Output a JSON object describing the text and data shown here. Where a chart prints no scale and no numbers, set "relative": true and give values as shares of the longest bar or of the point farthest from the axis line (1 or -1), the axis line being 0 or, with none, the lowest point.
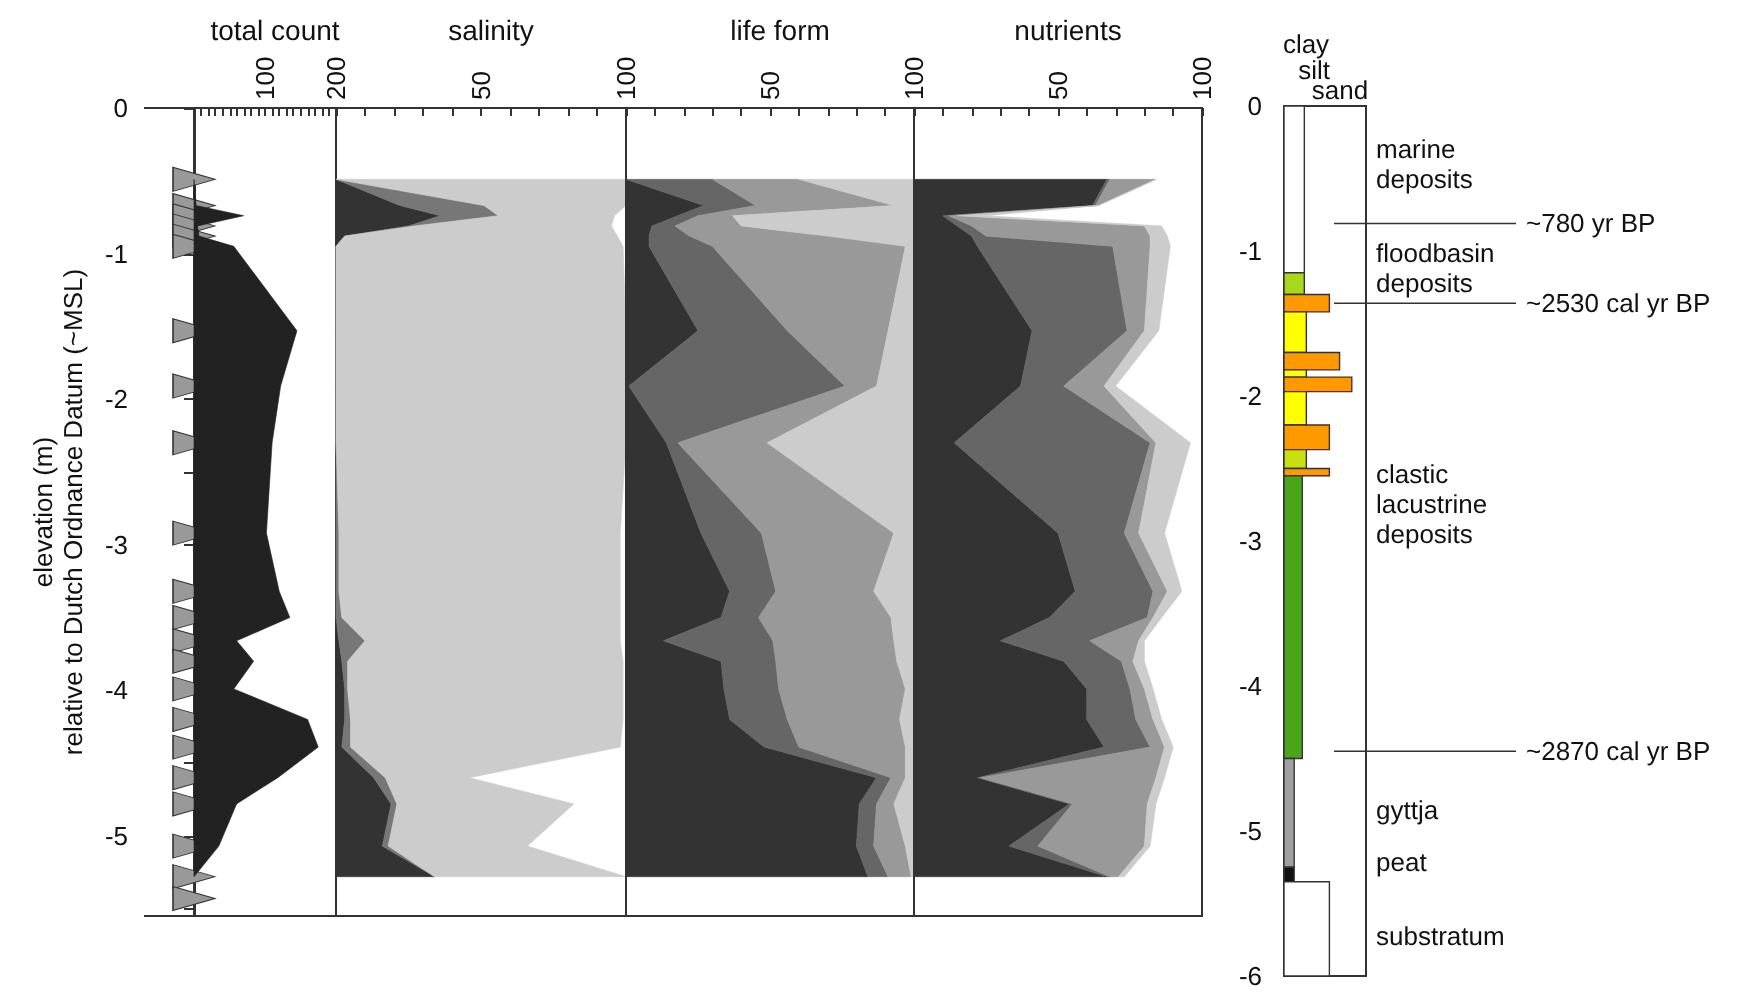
{
  "chart_data": [
    {
      "type": "area",
      "title": "total count",
      "orientation": "horizontal",
      "ylabel": "elevation (m)\nrelative to Dutch Ordnance Datum (~MSL)",
      "x": [
        -0.49,
        -0.67,
        -0.74,
        -0.81,
        -0.88,
        -0.95,
        -1.53,
        -1.91,
        -2.3,
        -2.92,
        -3.32,
        -3.5,
        -3.66,
        -3.8,
        -3.99,
        -4.2,
        -4.39,
        -4.6,
        -4.78,
        -5.07,
        -5.28
      ],
      "series": [
        {
          "color": "#222222",
          "values": [
            0,
            3,
            70,
            5,
            7,
            56,
            145,
            122,
            110,
            102,
            120,
            135,
            60,
            84,
            56,
            160,
            175,
            118,
            60,
            35,
            0
          ]
        },
        {
          "type": "scatter",
          "marker": "triangle",
          "color": "#999999",
          "x": [
            -0.49,
            -0.67,
            -0.74,
            -0.81,
            -0.88,
            -0.95,
            -1.53,
            -1.91,
            -2.3,
            -2.92,
            -3.32,
            -3.5,
            -3.66,
            -3.8,
            -3.99,
            -4.2,
            -4.39,
            -4.6,
            -4.78,
            -5.07,
            -5.28,
            -5.43
          ],
          "values": [
            0,
            0,
            0,
            0,
            0,
            0,
            0,
            0,
            0,
            0,
            0,
            0,
            0,
            0,
            0,
            0,
            0,
            0,
            0,
            0,
            0,
            0
          ]
        }
      ],
      "xlim": [
        0,
        200
      ],
      "xticks": [
        {
          "value": 10,
          "label": null
        },
        {
          "value": 20,
          "label": null
        },
        {
          "value": 30,
          "label": null
        },
        {
          "value": 40,
          "label": null
        },
        {
          "value": 50,
          "label": null
        },
        {
          "value": 60,
          "label": null
        },
        {
          "value": 70,
          "label": null
        },
        {
          "value": 80,
          "label": null
        },
        {
          "value": 90,
          "label": null
        },
        100,
        {
          "value": 110,
          "label": null
        },
        {
          "value": 120,
          "label": null
        },
        {
          "value": 130,
          "label": null
        },
        {
          "value": 140,
          "label": null
        },
        {
          "value": 150,
          "label": null
        },
        {
          "value": 160,
          "label": null
        },
        {
          "value": 170,
          "label": null
        },
        {
          "value": 180,
          "label": null
        },
        {
          "value": 190,
          "label": null
        },
        200
      ],
      "ylim": [
        -5.55,
        0
      ],
      "yticks": [
        0,
        {
          "value": -0.5,
          "label": null
        },
        -1,
        {
          "value": -1.5,
          "label": null
        },
        -2,
        {
          "value": -2.5,
          "label": null
        },
        -3,
        {
          "value": -3.5,
          "label": null
        },
        -4,
        {
          "value": -4.5,
          "label": null
        },
        -5,
        {
          "value": -5.5,
          "label": null
        }
      ]
    },
    {
      "type": "area",
      "title": "salinity",
      "orientation": "horizontal",
      "stacked": true,
      "tick_labels": "x",
      "x": [
        -0.49,
        -0.67,
        -0.74,
        -0.81,
        -0.88,
        -0.95,
        -1.53,
        -1.91,
        -2.3,
        -2.92,
        -3.32,
        -3.5,
        -3.66,
        -3.8,
        -3.99,
        -4.2,
        -4.39,
        -4.6,
        -4.78,
        -5.07,
        -5.28
      ],
      "series": [
        {
          "color": "#333333",
          "values": [
            0,
            22,
            36,
            25,
            3,
            0,
            0,
            0,
            0,
            0,
            0,
            0,
            1,
            2,
            3,
            3,
            2,
            13,
            19,
            16,
            34
          ]
        },
        {
          "color": "#777777",
          "values": [
            0,
            29,
            20,
            2,
            0,
            0,
            0,
            0,
            0,
            1,
            1,
            2,
            9,
            2,
            1,
            2,
            3,
            4,
            2,
            2,
            0
          ]
        },
        {
          "color": "#cccccc",
          "values": [
            100,
            49,
            40,
            68,
            94,
            99,
            100,
            100,
            100,
            97,
            97,
            96,
            88,
            95,
            95,
            94,
            93,
            29,
            61,
            48,
            66
          ]
        }
      ],
      "xlim": [
        0,
        100
      ],
      "xticks": [
        {
          "value": 10,
          "label": null
        },
        {
          "value": 20,
          "label": null
        },
        {
          "value": 30,
          "label": null
        },
        {
          "value": 40,
          "label": null
        },
        50,
        {
          "value": 60,
          "label": null
        },
        {
          "value": 70,
          "label": null
        },
        {
          "value": 80,
          "label": null
        },
        {
          "value": 90,
          "label": null
        },
        100
      ],
      "ylim": [
        -5.55,
        0
      ],
      "yticks": [
        0,
        -1,
        -2,
        -3,
        -4,
        -5
      ]
    },
    {
      "type": "area",
      "title": "life form",
      "orientation": "horizontal",
      "stacked": true,
      "tick_labels": "x",
      "x": [
        -0.49,
        -0.67,
        -0.74,
        -0.81,
        -0.88,
        -0.95,
        -1.53,
        -1.91,
        -2.3,
        -2.92,
        -3.32,
        -3.5,
        -3.66,
        -3.8,
        -3.99,
        -4.2,
        -4.39,
        -4.6,
        -4.78,
        -5.07,
        -5.28
      ],
      "series": [
        {
          "color": "#333333",
          "values": [
            0,
            27,
            18,
            9,
            8,
            8,
            25,
            1,
            14,
            26,
            36,
            33,
            13,
            33,
            34,
            36,
            48,
            87,
            81,
            80,
            84
          ]
        },
        {
          "color": "#666666",
          "values": [
            30,
            18,
            7,
            8,
            14,
            22,
            31,
            75,
            4,
            21,
            16,
            13,
            38,
            19,
            19,
            20,
            12,
            5,
            6,
            6,
            7
          ]
        },
        {
          "color": "#999999",
          "values": [
            30,
            48,
            12,
            23,
            48,
            67,
            35,
            11,
            31,
            46,
            34,
            46,
            42,
            42,
            44,
            39,
            37,
            5,
            6,
            11,
            8
          ]
        },
        {
          "color": "#cccccc",
          "values": [
            40,
            7,
            63,
            60,
            30,
            3,
            9,
            13,
            51,
            7,
            14,
            8,
            7,
            6,
            3,
            5,
            3,
            3,
            7,
            3,
            1
          ]
        }
      ],
      "xlim": [
        0,
        100
      ],
      "xticks": [
        {
          "value": 10,
          "label": null
        },
        {
          "value": 20,
          "label": null
        },
        {
          "value": 30,
          "label": null
        },
        {
          "value": 40,
          "label": null
        },
        50,
        {
          "value": 60,
          "label": null
        },
        {
          "value": 70,
          "label": null
        },
        {
          "value": 80,
          "label": null
        },
        {
          "value": 90,
          "label": null
        },
        100
      ],
      "ylim": [
        -5.55,
        0
      ],
      "yticks": [
        0,
        -1,
        -2,
        -3,
        -4,
        -5
      ]
    },
    {
      "type": "area",
      "title": "nutrients",
      "orientation": "horizontal",
      "stacked": true,
      "tick_labels": "x",
      "x": [
        -0.49,
        -0.67,
        -0.74,
        -0.81,
        -0.88,
        -0.95,
        -1.53,
        -1.91,
        -2.3,
        -2.92,
        -3.32,
        -3.5,
        -3.66,
        -3.8,
        -3.99,
        -4.2,
        -4.39,
        -4.6,
        -4.78,
        -5.07,
        -5.28
      ],
      "series": [
        {
          "color": "#333333",
          "values": [
            67,
            62,
            10,
            15,
            20,
            22,
            41,
            37,
            14,
            50,
            56,
            47,
            30,
            52,
            60,
            60,
            66,
            22,
            54,
            33,
            67
          ]
        },
        {
          "color": "#666666",
          "values": [
            1,
            1,
            2,
            5,
            5,
            47,
            33,
            15,
            68,
            23,
            27,
            34,
            31,
            20,
            15,
            17,
            16,
            1,
            1,
            10,
            1
          ]
        },
        {
          "color": "#999999",
          "values": [
            16,
            1,
            3,
            60,
            57,
            13,
            6,
            14,
            2,
            5,
            5,
            2,
            17,
            4,
            5,
            6,
            5,
            61,
            26,
            37,
            3
          ]
        },
        {
          "color": "#cccccc",
          "values": [
            0,
            0,
            10,
            6,
            6,
            7,
            5,
            4,
            12,
            9,
            5,
            3,
            2,
            4,
            3,
            3,
            3,
            3,
            3,
            2,
            2
          ]
        }
      ],
      "xlim": [
        0,
        100
      ],
      "xticks": [
        {
          "value": 10,
          "label": null
        },
        {
          "value": 20,
          "label": null
        },
        {
          "value": 30,
          "label": null
        },
        {
          "value": 40,
          "label": null
        },
        50,
        {
          "value": 60,
          "label": null
        },
        {
          "value": 70,
          "label": null
        },
        {
          "value": 80,
          "label": null
        },
        {
          "value": 90,
          "label": null
        },
        100
      ],
      "ylim": [
        -5.55,
        0
      ],
      "yticks": [
        0,
        -1,
        -2,
        -3,
        -4,
        -5
      ]
    },
    {
      "type": "bar",
      "orientation": "horizontal",
      "relative": true,
      "tick_labels": "y",
      "x": [
        -0.575,
        -1.225,
        -1.36,
        -1.56,
        -1.76,
        -1.845,
        -1.92,
        -2.085,
        -2.285,
        -2.435,
        -2.525,
        -3.525,
        -4.875,
        -5.3,
        -5.675
      ],
      "values": [
        0.3,
        0.3,
        0.67,
        0.33,
        0.82,
        0.33,
        1,
        0.33,
        0.67,
        0.33,
        0.67,
        0.27,
        0.15,
        0.15,
        0.67
      ],
      "colors": [
        "#ffffff",
        "#a8d81c",
        "#ff9900",
        "#ffff00",
        "#ff9900",
        "#ffff00",
        "#ff9900",
        "#ffff00",
        "#ff9900",
        "#c8e010",
        "#ff9900",
        "#4aa51a",
        "#a0a0a0",
        "#111111",
        "#ffffff"
      ],
      "ylim": [
        -6,
        0
      ],
      "yticks": [
        0,
        -1,
        -2,
        -3,
        -4,
        -5,
        -6
      ],
      "ref_lines": [
        {
          "axis": "y",
          "value": -0.81,
          "label": "~780 yr BP"
        },
        {
          "axis": "y",
          "value": -1.36,
          "label": "~2530 cal yr BP"
        },
        {
          "axis": "y",
          "value": -4.45,
          "label": "~2870 cal yr BP"
        }
      ],
      "annotations": [
        "clay",
        "silt",
        "sand",
        "marine deposits",
        "floodbasin deposits",
        "clastic lacustrine deposits",
        "gyttja",
        "peat",
        "substratum"
      ]
    }
  ]
}
